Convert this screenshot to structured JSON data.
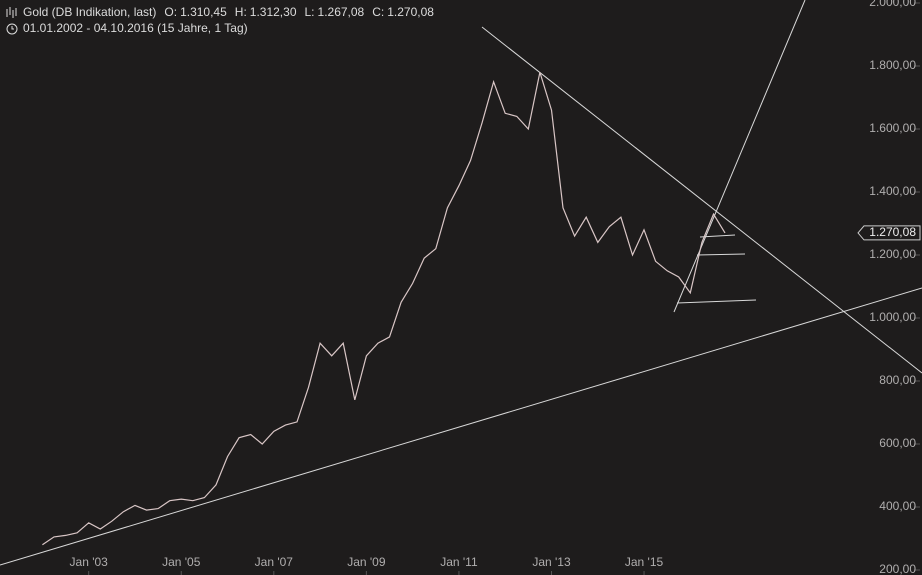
{
  "chart_data": {
    "type": "line",
    "title": "Gold (DB Indikation, last)",
    "ohlc": [
      {
        "key": "O:",
        "value": "1.310,45"
      },
      {
        "key": "H:",
        "value": "1.312,30"
      },
      {
        "key": "L:",
        "value": "1.267,08"
      },
      {
        "key": "C:",
        "value": "1.270,08"
      }
    ],
    "subtitle": "01.01.2002 - 04.10.2016 (15 Jahre, 1 Tag)",
    "last_price": {
      "value": 1270.08,
      "label": "1.270,08"
    },
    "x": [
      "2002-01",
      "2002-04",
      "2002-07",
      "2002-10",
      "2003-01",
      "2003-04",
      "2003-07",
      "2003-10",
      "2004-01",
      "2004-04",
      "2004-07",
      "2004-10",
      "2005-01",
      "2005-04",
      "2005-07",
      "2005-10",
      "2006-01",
      "2006-04",
      "2006-07",
      "2006-10",
      "2007-01",
      "2007-04",
      "2007-07",
      "2007-10",
      "2008-01",
      "2008-04",
      "2008-07",
      "2008-10",
      "2009-01",
      "2009-04",
      "2009-07",
      "2009-10",
      "2010-01",
      "2010-04",
      "2010-07",
      "2010-10",
      "2011-01",
      "2011-04",
      "2011-07",
      "2011-10",
      "2012-01",
      "2012-04",
      "2012-07",
      "2012-10",
      "2013-01",
      "2013-04",
      "2013-07",
      "2013-10",
      "2014-01",
      "2014-04",
      "2014-07",
      "2014-10",
      "2015-01",
      "2015-04",
      "2015-07",
      "2015-10",
      "2016-01",
      "2016-04",
      "2016-07",
      "2016-10"
    ],
    "series": [
      {
        "name": "Gold",
        "color": "#d9c6c6",
        "values": [
          280,
          305,
          310,
          318,
          350,
          330,
          355,
          385,
          405,
          390,
          395,
          420,
          425,
          420,
          430,
          470,
          560,
          620,
          630,
          600,
          640,
          660,
          670,
          780,
          920,
          880,
          920,
          740,
          880,
          920,
          940,
          1050,
          1110,
          1190,
          1220,
          1350,
          1420,
          1500,
          1620,
          1750,
          1650,
          1640,
          1600,
          1780,
          1660,
          1350,
          1260,
          1320,
          1240,
          1290,
          1320,
          1200,
          1280,
          1180,
          1150,
          1130,
          1080,
          1240,
          1330,
          1270
        ]
      }
    ],
    "xlim": [
      "2001-02",
      "2019-09"
    ],
    "xticks": [
      {
        "value": "2003-01",
        "label": "Jan '03"
      },
      {
        "value": "2005-01",
        "label": "Jan '05"
      },
      {
        "value": "2007-01",
        "label": "Jan '07"
      },
      {
        "value": "2009-01",
        "label": "Jan '09"
      },
      {
        "value": "2011-01",
        "label": "Jan '11"
      },
      {
        "value": "2013-01",
        "label": "Jan '13"
      },
      {
        "value": "2015-01",
        "label": "Jan '15"
      }
    ],
    "ylim": [
      200,
      2000
    ],
    "yticks": [
      {
        "value": 200,
        "label": "200,00"
      },
      {
        "value": 400,
        "label": "400,00"
      },
      {
        "value": 600,
        "label": "600,00"
      },
      {
        "value": 800,
        "label": "800,00"
      },
      {
        "value": 1000,
        "label": "1.000,00"
      },
      {
        "value": 1200,
        "label": "1.200,00"
      },
      {
        "value": 1400,
        "label": "1.400,00"
      },
      {
        "value": 1600,
        "label": "1.600,00"
      },
      {
        "value": 1800,
        "label": "1.800,00"
      },
      {
        "value": 2000,
        "label": "2.000,00"
      }
    ]
  }
}
